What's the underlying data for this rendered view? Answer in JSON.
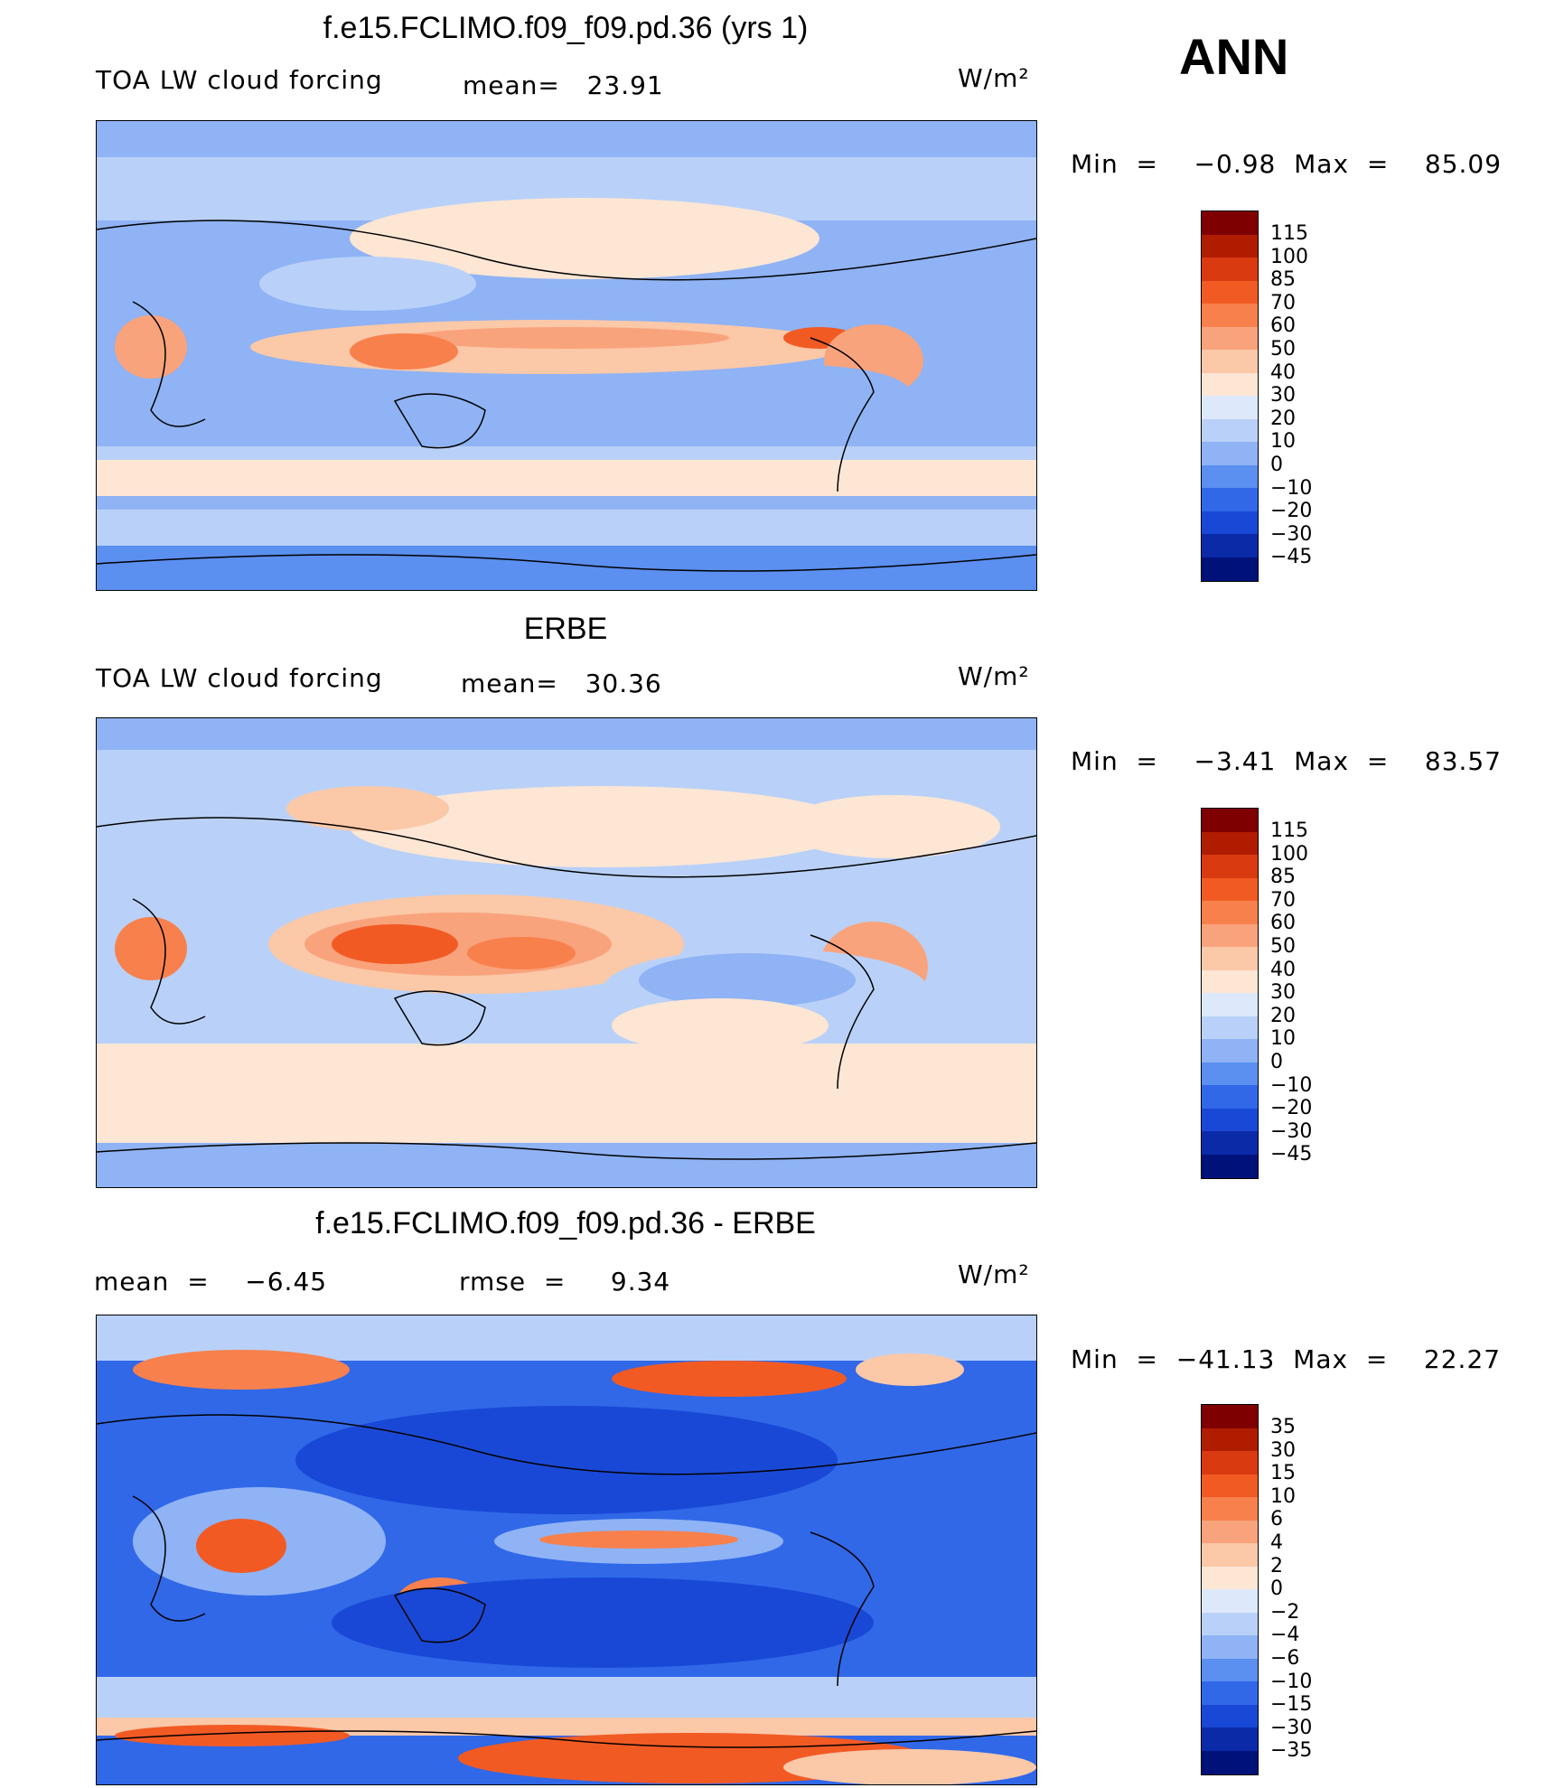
{
  "season": "ANN",
  "panels": [
    {
      "title": "f.e15.FCLIMO.f09_f09.pd.36 (yrs 1)",
      "left": "TOA LW cloud forcing",
      "center": "mean=   23.91",
      "units": "W/m²",
      "minmax": "Min  =    −0.98  Max  =    85.09",
      "levels": [
        "115",
        "100",
        "85",
        "70",
        "60",
        "50",
        "40",
        "30",
        "20",
        "10",
        "0",
        "−10",
        "−20",
        "−30",
        "−45"
      ]
    },
    {
      "title": "ERBE",
      "left": "TOA LW cloud forcing",
      "center": "mean=   30.36",
      "units": "W/m²",
      "minmax": "Min  =    −3.41  Max  =    83.57",
      "levels": [
        "115",
        "100",
        "85",
        "70",
        "60",
        "50",
        "40",
        "30",
        "20",
        "10",
        "0",
        "−10",
        "−20",
        "−30",
        "−45"
      ]
    },
    {
      "title": "f.e15.FCLIMO.f09_f09.pd.36 - ERBE",
      "left": "mean  =    −6.45",
      "center": "rmse  =     9.34",
      "units": "W/m²",
      "minmax": "Min  =  −41.13  Max  =    22.27",
      "levels": [
        "35",
        "30",
        "15",
        "10",
        "6",
        "4",
        "2",
        "0",
        "−2",
        "−4",
        "−6",
        "−10",
        "−15",
        "−30",
        "−35"
      ]
    }
  ],
  "colors": {
    "scale": [
      "#7f0000",
      "#b01c00",
      "#d93a10",
      "#f25a24",
      "#f8804c",
      "#f9a37c",
      "#fbc8a8",
      "#fde6d4",
      "#dde9fb",
      "#b9d1f8",
      "#8fb3f4",
      "#5b8ff0",
      "#3068e8",
      "#1a48d6",
      "#0a2aa8",
      "#00127a"
    ]
  }
}
